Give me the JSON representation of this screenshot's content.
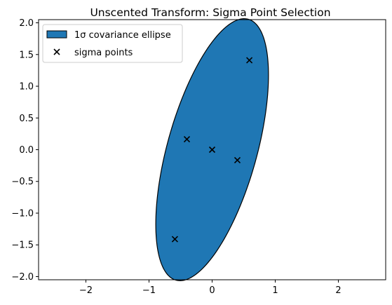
{
  "chart_data": {
    "type": "scatter",
    "title": "Unscented Transform: Sigma Point Selection",
    "xlabel": "",
    "ylabel": "",
    "xlim": [
      -2.75,
      2.75
    ],
    "ylim": [
      -2.05,
      2.05
    ],
    "x_ticks": [
      -2,
      -1,
      0,
      1,
      2
    ],
    "x_tick_labels": [
      "−2",
      "−1",
      "0",
      "1",
      "2"
    ],
    "y_ticks": [
      -2.0,
      -1.5,
      -1.0,
      -0.5,
      0.0,
      0.5,
      1.0,
      1.5,
      2.0
    ],
    "y_tick_labels": [
      "−2.0",
      "−1.5",
      "−1.0",
      "−0.5",
      "0.0",
      "0.5",
      "1.0",
      "1.5",
      "2.0"
    ],
    "grid": false,
    "legend_position": "top-left",
    "ellipse": {
      "label": "1σ covariance ellipse",
      "center": [
        0,
        0
      ],
      "width": 1.42,
      "height": 4.27,
      "angle_deg": -15.6,
      "fill": "#1f77b4",
      "edge": "#000000"
    },
    "series": [
      {
        "name": "sigma points",
        "marker": "x",
        "color": "#000000",
        "points": [
          [
            0.0,
            0.0
          ],
          [
            0.59,
            1.41
          ],
          [
            -0.59,
            -1.41
          ],
          [
            0.4,
            -0.165
          ],
          [
            -0.4,
            0.165
          ]
        ]
      }
    ]
  }
}
